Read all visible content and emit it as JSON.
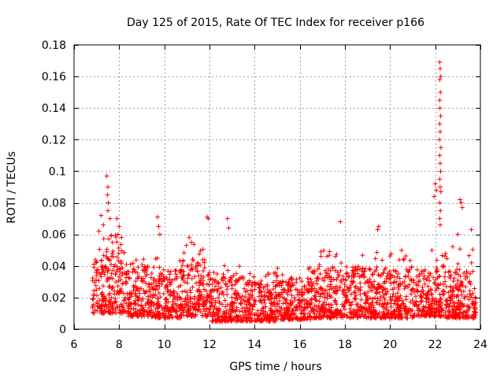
{
  "chart_data": {
    "type": "scatter",
    "title": "Day 125 of 2015, Rate Of TEC Index for receiver p166",
    "xlabel": "GPS time / hours",
    "ylabel": "ROTI / TECUs",
    "xlim": [
      6,
      24
    ],
    "ylim": [
      0,
      0.18
    ],
    "x_ticks": [
      6,
      8,
      10,
      12,
      14,
      16,
      18,
      20,
      22,
      24
    ],
    "x_tick_labels": [
      "6",
      "8",
      "10",
      "12",
      "14",
      "16",
      "18",
      "20",
      "22",
      "24"
    ],
    "y_ticks": [
      0,
      0.02,
      0.04,
      0.06,
      0.08,
      0.1,
      0.12,
      0.14,
      0.16,
      0.18
    ],
    "y_tick_labels": [
      "0",
      "0.02",
      "0.04",
      "0.06",
      "0.08",
      "0.1",
      "0.12",
      "0.14",
      "0.16",
      "0.18"
    ],
    "grid": true,
    "marker": "+",
    "color": "#ff0000",
    "series": [
      {
        "name": "ROTI",
        "points": [
          [
            7.45,
            0.097
          ],
          [
            7.5,
            0.09
          ],
          [
            7.48,
            0.085
          ],
          [
            7.52,
            0.08
          ],
          [
            7.5,
            0.075
          ],
          [
            7.2,
            0.072
          ],
          [
            7.6,
            0.07
          ],
          [
            7.3,
            0.066
          ],
          [
            7.1,
            0.062
          ],
          [
            7.9,
            0.07
          ],
          [
            8.0,
            0.065
          ],
          [
            7.95,
            0.06
          ],
          [
            8.1,
            0.058
          ],
          [
            9.7,
            0.071
          ],
          [
            9.75,
            0.065
          ],
          [
            9.8,
            0.06
          ],
          [
            11.9,
            0.071
          ],
          [
            11.95,
            0.07
          ],
          [
            12.8,
            0.07
          ],
          [
            12.85,
            0.064
          ],
          [
            17.8,
            0.068
          ],
          [
            19.5,
            0.065
          ],
          [
            19.45,
            0.063
          ],
          [
            11.1,
            0.058
          ],
          [
            11.2,
            0.055
          ],
          [
            22.2,
            0.169
          ],
          [
            22.22,
            0.165
          ],
          [
            22.25,
            0.16
          ],
          [
            22.2,
            0.158
          ],
          [
            22.23,
            0.15
          ],
          [
            22.2,
            0.145
          ],
          [
            22.21,
            0.14
          ],
          [
            22.24,
            0.135
          ],
          [
            22.2,
            0.13
          ],
          [
            22.22,
            0.125
          ],
          [
            22.19,
            0.12
          ],
          [
            22.25,
            0.115
          ],
          [
            22.2,
            0.11
          ],
          [
            22.22,
            0.105
          ],
          [
            22.24,
            0.1
          ],
          [
            22.2,
            0.095
          ],
          [
            22.22,
            0.09
          ],
          [
            22.25,
            0.087
          ],
          [
            22.2,
            0.08
          ],
          [
            22.23,
            0.075
          ],
          [
            22.2,
            0.07
          ],
          [
            22.22,
            0.066
          ],
          [
            22.0,
            0.092
          ],
          [
            22.05,
            0.088
          ],
          [
            21.95,
            0.084
          ],
          [
            23.1,
            0.082
          ],
          [
            23.15,
            0.08
          ],
          [
            23.2,
            0.077
          ],
          [
            23.0,
            0.06
          ],
          [
            23.6,
            0.063
          ]
        ]
      }
    ],
    "bands": [
      {
        "x_start": 6.8,
        "x_end": 7.4,
        "y_low": 0.01,
        "y_high": 0.048,
        "tail": 0.058
      },
      {
        "x_start": 7.4,
        "x_end": 8.4,
        "y_low": 0.01,
        "y_high": 0.05,
        "tail": 0.06
      },
      {
        "x_start": 8.4,
        "x_end": 9.6,
        "y_low": 0.008,
        "y_high": 0.04,
        "tail": 0.046
      },
      {
        "x_start": 9.6,
        "x_end": 10.8,
        "y_low": 0.007,
        "y_high": 0.038,
        "tail": 0.045
      },
      {
        "x_start": 10.8,
        "x_end": 12.0,
        "y_low": 0.008,
        "y_high": 0.045,
        "tail": 0.055
      },
      {
        "x_start": 12.0,
        "x_end": 13.5,
        "y_low": 0.005,
        "y_high": 0.034,
        "tail": 0.042
      },
      {
        "x_start": 13.5,
        "x_end": 15.0,
        "y_low": 0.005,
        "y_high": 0.03,
        "tail": 0.036
      },
      {
        "x_start": 15.0,
        "x_end": 16.5,
        "y_low": 0.006,
        "y_high": 0.033,
        "tail": 0.04
      },
      {
        "x_start": 16.5,
        "x_end": 18.0,
        "y_low": 0.007,
        "y_high": 0.04,
        "tail": 0.05
      },
      {
        "x_start": 18.0,
        "x_end": 19.5,
        "y_low": 0.007,
        "y_high": 0.04,
        "tail": 0.052
      },
      {
        "x_start": 19.5,
        "x_end": 21.0,
        "y_low": 0.007,
        "y_high": 0.038,
        "tail": 0.05
      },
      {
        "x_start": 21.0,
        "x_end": 22.4,
        "y_low": 0.008,
        "y_high": 0.04,
        "tail": 0.052
      },
      {
        "x_start": 22.4,
        "x_end": 23.8,
        "y_low": 0.007,
        "y_high": 0.038,
        "tail": 0.055
      }
    ]
  }
}
